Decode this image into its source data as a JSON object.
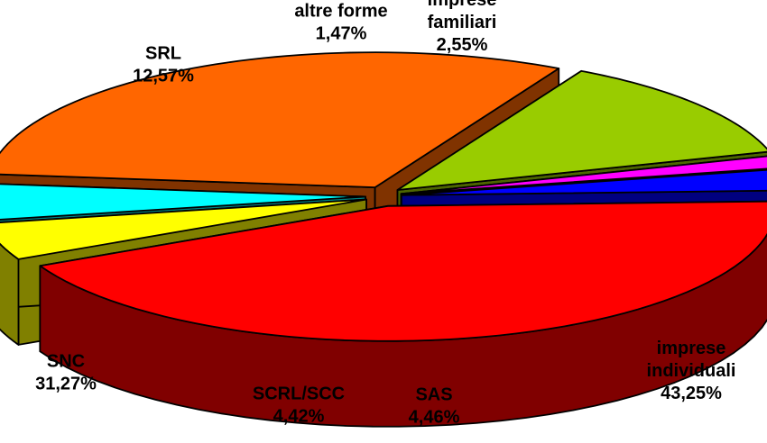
{
  "chart_data": {
    "type": "pie",
    "title": "",
    "legend": "none",
    "slices": [
      {
        "name_lines": [
          "imprese",
          "individuali"
        ],
        "value_label": "43,25%",
        "value": 43.25,
        "color": "#FF0000",
        "side_color": "#800000"
      },
      {
        "name_lines": [
          "SAS"
        ],
        "value_label": "4,46%",
        "value": 4.46,
        "color": "#FFFF00",
        "side_color": "#808000"
      },
      {
        "name_lines": [
          "SCRL/SCC"
        ],
        "value_label": "4,42%",
        "value": 4.42,
        "color": "#00FFFF",
        "side_color": "#008080"
      },
      {
        "name_lines": [
          "SNC"
        ],
        "value_label": "31,27%",
        "value": 31.27,
        "color": "#FF6600",
        "side_color": "#803300"
      },
      {
        "name_lines": [
          "SRL"
        ],
        "value_label": "12,57%",
        "value": 12.57,
        "color": "#99CC00",
        "side_color": "#4D6600"
      },
      {
        "name_lines": [
          "altre forme"
        ],
        "value_label": "1,47%",
        "value": 1.47,
        "color": "#FF00FF",
        "side_color": "#800080"
      },
      {
        "name_lines": [
          "imprese",
          "familiari"
        ],
        "value_label": "2,55%",
        "value": 2.55,
        "color": "#0000FF",
        "side_color": "#000080"
      }
    ]
  }
}
